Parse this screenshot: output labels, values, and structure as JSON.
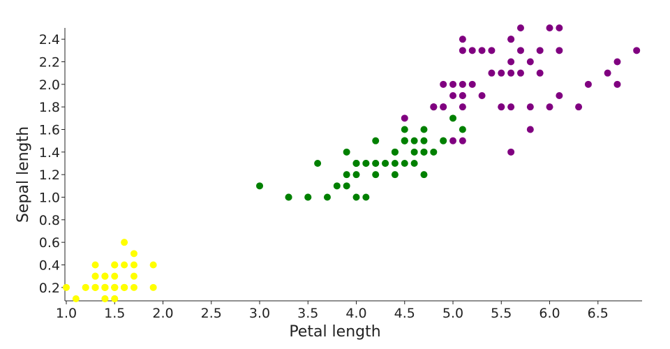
{
  "chart_data": {
    "type": "scatter",
    "x_label": "Petal length",
    "y_label": "Sepal length",
    "xlim": [
      1,
      6.96
    ],
    "ylim": [
      0.1,
      2.5
    ],
    "xticks": [
      {
        "value": 1,
        "label": "1.0"
      },
      1.5,
      {
        "value": 2,
        "label": "2.0"
      },
      2.5,
      {
        "value": 3,
        "label": "3.0"
      },
      3.5,
      {
        "value": 4,
        "label": "4.0"
      },
      4.5,
      {
        "value": 5,
        "label": "5.0"
      },
      5.5,
      {
        "value": 6,
        "label": "6.0"
      },
      6.5
    ],
    "yticks": [
      0.2,
      0.4,
      0.6,
      0.8,
      {
        "value": 1,
        "label": "1.0"
      },
      1.2,
      1.4,
      1.6,
      1.8,
      {
        "value": 2,
        "label": "2.0"
      },
      2.2,
      2.4
    ],
    "grid": false,
    "series": [
      {
        "color": "#ffff00",
        "x": [
          1.4,
          1.4,
          1.3,
          1.5,
          1.4,
          1.7,
          1.4,
          1.5,
          1.4,
          1.5,
          1.5,
          1.6,
          1.4,
          1.1,
          1.2,
          1.5,
          1.3,
          1.4,
          1.7,
          1.5,
          1.7,
          1.5,
          1.0,
          1.7,
          1.9,
          1.6,
          1.6,
          1.5,
          1.4,
          1.6,
          1.6,
          1.5,
          1.5,
          1.4,
          1.5,
          1.2,
          1.3,
          1.4,
          1.3,
          1.5,
          1.3,
          1.3,
          1.3,
          1.6,
          1.9,
          1.4,
          1.6,
          1.4,
          1.5,
          1.4
        ],
        "values": [
          0.2,
          0.2,
          0.2,
          0.2,
          0.2,
          0.4,
          0.3,
          0.2,
          0.2,
          0.1,
          0.2,
          0.2,
          0.1,
          0.1,
          0.2,
          0.4,
          0.4,
          0.3,
          0.3,
          0.3,
          0.2,
          0.4,
          0.2,
          0.5,
          0.2,
          0.2,
          0.4,
          0.2,
          0.2,
          0.2,
          0.2,
          0.4,
          0.1,
          0.2,
          0.2,
          0.2,
          0.2,
          0.1,
          0.2,
          0.2,
          0.3,
          0.3,
          0.2,
          0.6,
          0.4,
          0.3,
          0.2,
          0.2,
          0.2,
          0.2
        ]
      },
      {
        "color": "#008000",
        "x": [
          4.7,
          4.5,
          4.9,
          4.0,
          4.6,
          4.5,
          4.7,
          3.3,
          4.6,
          3.9,
          3.5,
          4.2,
          4.0,
          4.7,
          3.6,
          4.4,
          4.5,
          4.1,
          4.5,
          3.9,
          4.8,
          4.0,
          4.9,
          4.7,
          4.3,
          4.4,
          4.8,
          5.0,
          4.5,
          3.5,
          3.8,
          3.7,
          3.9,
          5.1,
          4.5,
          4.5,
          4.7,
          4.4,
          4.1,
          4.0,
          4.4,
          4.6,
          4.0,
          3.3,
          4.2,
          4.2,
          4.2,
          4.3,
          3.0,
          4.1
        ],
        "values": [
          1.4,
          1.5,
          1.5,
          1.3,
          1.5,
          1.3,
          1.6,
          1.0,
          1.3,
          1.4,
          1.0,
          1.5,
          1.0,
          1.4,
          1.3,
          1.4,
          1.5,
          1.0,
          1.5,
          1.1,
          1.8,
          1.3,
          1.5,
          1.2,
          1.3,
          1.4,
          1.4,
          1.7,
          1.5,
          1.0,
          1.1,
          1.0,
          1.2,
          1.6,
          1.5,
          1.6,
          1.5,
          1.3,
          1.3,
          1.3,
          1.2,
          1.4,
          1.2,
          1.0,
          1.3,
          1.2,
          1.3,
          1.3,
          1.1,
          1.3
        ]
      },
      {
        "color": "#800080",
        "x": [
          6.0,
          5.1,
          5.9,
          5.6,
          5.8,
          6.6,
          4.5,
          6.3,
          5.8,
          6.1,
          5.1,
          5.3,
          5.5,
          5.0,
          5.1,
          5.3,
          5.5,
          6.7,
          6.9,
          5.0,
          5.7,
          4.9,
          6.7,
          4.9,
          5.7,
          6.0,
          4.8,
          4.9,
          5.6,
          5.8,
          6.1,
          6.4,
          5.6,
          5.1,
          5.6,
          6.1,
          5.6,
          5.5,
          4.8,
          5.4,
          5.6,
          5.1,
          5.1,
          5.9,
          5.7,
          5.2,
          5.0,
          5.2,
          5.4,
          5.1
        ],
        "values": [
          2.5,
          1.9,
          2.1,
          1.8,
          2.2,
          2.1,
          1.7,
          1.8,
          1.8,
          2.5,
          2.0,
          1.9,
          2.1,
          2.0,
          2.4,
          2.3,
          1.8,
          2.2,
          2.3,
          1.5,
          2.3,
          2.0,
          2.0,
          1.8,
          2.1,
          1.8,
          1.8,
          1.8,
          2.1,
          1.6,
          1.9,
          2.0,
          2.2,
          1.5,
          1.4,
          2.3,
          2.4,
          1.8,
          1.8,
          2.1,
          2.4,
          2.3,
          1.9,
          2.3,
          2.5,
          2.3,
          1.9,
          2.0,
          2.3,
          1.8
        ]
      }
    ]
  }
}
